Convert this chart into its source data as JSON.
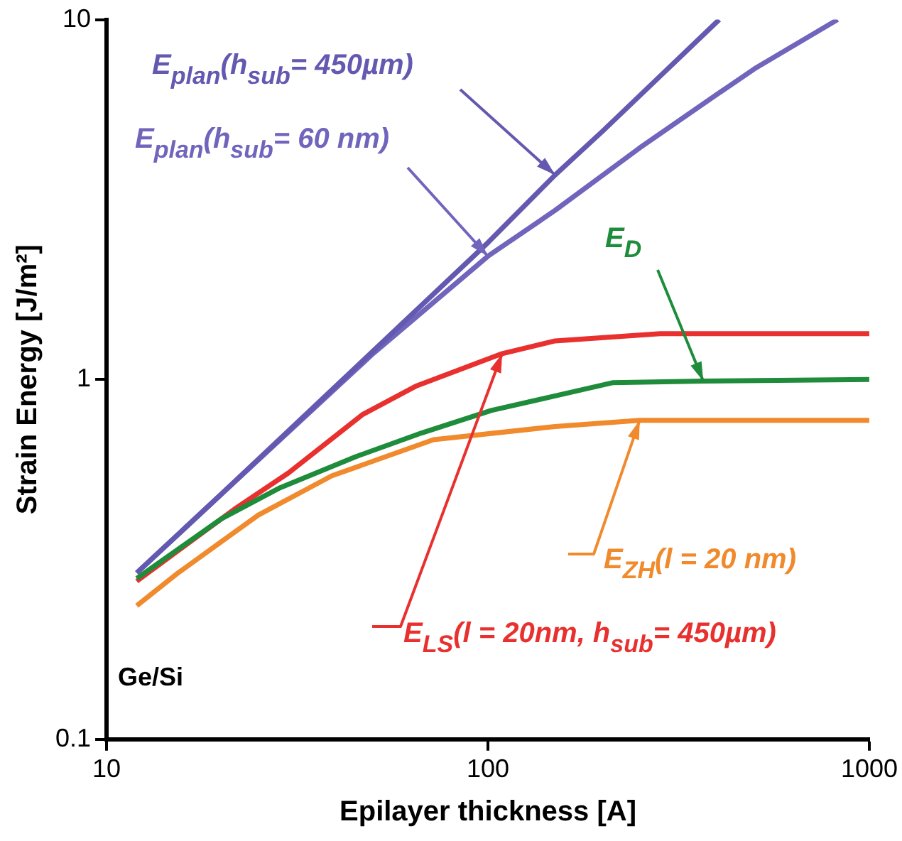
{
  "chart_data": {
    "type": "line",
    "xlabel": "Epilayer thickness [A]",
    "ylabel": "Strain Energy [J/m²]",
    "log": "xy",
    "grid": false,
    "legend": false,
    "marker": "none",
    "line_style": "solid",
    "xlim": [
      10,
      1000
    ],
    "xticks": [
      10,
      100,
      1000
    ],
    "ylim": [
      0.1,
      10
    ],
    "yticks": [
      0.1,
      1,
      10
    ],
    "series": [
      {
        "name": "E$_{plan}$(h$_{sub}$= 450µm)",
        "color": "#6459b0",
        "x": [
          12,
          20,
          50,
          100,
          150,
          200,
          404
        ],
        "values": [
          0.29,
          0.48,
          1.2,
          2.4,
          3.7,
          4.9,
          10
        ]
      },
      {
        "name": "E$_{plan}$(h$_{sub}$= 60 nm)",
        "color": "#7064bc",
        "x": [
          12,
          20,
          50,
          100,
          150,
          250,
          390,
          500,
          826
        ],
        "values": [
          0.29,
          0.48,
          1.18,
          2.2,
          2.95,
          4.4,
          6.1,
          7.3,
          10
        ]
      },
      {
        "name": "E$_{D}$",
        "color": "#1e8c3a",
        "x": [
          12,
          20,
          28.5,
          45,
          67,
          102,
          150,
          213,
          367,
          1000
        ],
        "values": [
          0.28,
          0.41,
          0.5,
          0.61,
          0.71,
          0.82,
          0.9,
          0.98,
          0.99,
          1.0
        ]
      },
      {
        "name": "E$_{LS}$(l = 20nm, h$_{sub}$= 450µm)",
        "color": "#e8312f",
        "x": [
          12,
          21.9,
          30,
          47,
          65,
          109,
          150,
          283,
          1000
        ],
        "values": [
          0.275,
          0.44,
          0.55,
          0.8,
          0.96,
          1.18,
          1.28,
          1.34,
          1.34
        ]
      },
      {
        "name": "E$_{ZH}$(l = 20 nm)",
        "color": "#f08a2c",
        "x": [
          12,
          15.4,
          25,
          39,
          72,
          150,
          250,
          1000
        ],
        "values": [
          0.235,
          0.29,
          0.42,
          0.54,
          0.68,
          0.74,
          0.77,
          0.77
        ]
      }
    ],
    "annotations": [
      "Ge/Si"
    ]
  }
}
